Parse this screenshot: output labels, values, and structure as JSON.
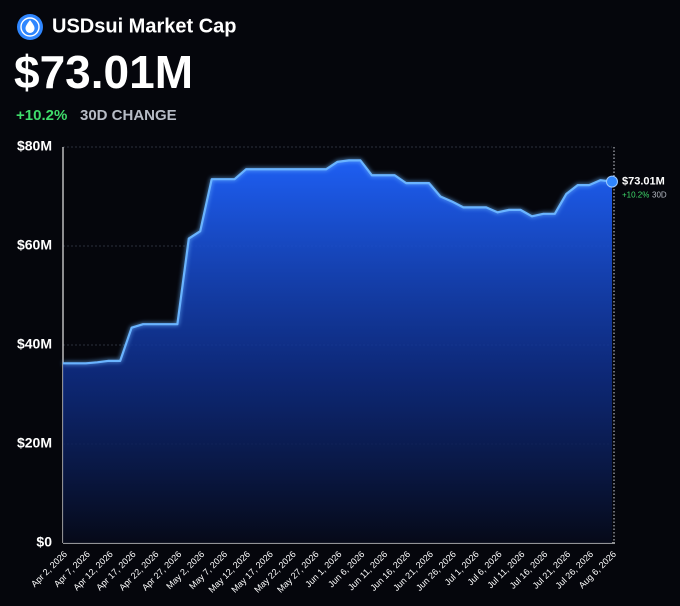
{
  "chart_data": {
    "type": "area",
    "title": "USDsui Market Cap",
    "headline_value": "$73.01M",
    "change": "+10.2%",
    "change_label": "30D CHANGE",
    "end_period": "30D",
    "categories": [
      "Apr 2, 2026",
      null,
      "Apr 7, 2026",
      null,
      "Apr 12, 2026",
      null,
      "Apr 17, 2026",
      null,
      "Apr 22, 2026",
      null,
      "Apr 27, 2026",
      null,
      "May 2, 2026",
      null,
      "May 7, 2026",
      null,
      "May 12, 2026",
      null,
      "May 17, 2026",
      null,
      "May 22, 2026",
      null,
      "May 27, 2026",
      null,
      "Jun 1, 2026",
      null,
      "Jun 6, 2026",
      null,
      "Jun 11, 2026",
      null,
      "Jun 16, 2026",
      null,
      "Jun 21, 2026",
      null,
      "Jun 26, 2026",
      null,
      "Jul 1, 2026",
      null,
      "Jul 6, 2026",
      null,
      "Jul 11, 2026",
      null,
      "Jul 16, 2026",
      null,
      "Jul 21, 2026",
      null,
      "Jul 26, 2026",
      null,
      "Aug 6, 2026"
    ],
    "values": [
      36.3,
      36.3,
      36.3,
      36.5,
      36.8,
      36.8,
      43.5,
      44.2,
      44.2,
      44.2,
      44.2,
      61.5,
      63,
      73.5,
      73.5,
      73.5,
      75.5,
      75.5,
      75.5,
      75.5,
      75.5,
      75.5,
      75.5,
      75.5,
      77,
      77.3,
      77.3,
      74.3,
      74.3,
      74.3,
      72.7,
      72.7,
      72.7,
      70,
      69,
      67.8,
      67.8,
      67.8,
      66.8,
      67.3,
      67.3,
      66,
      66.5,
      66.5,
      70.5,
      72.3,
      72.3,
      73.3,
      73.01
    ],
    "color": "#2f86ff",
    "ylim": [
      0,
      80
    ],
    "yticks": [
      {
        "value": 0,
        "label": "$0"
      },
      {
        "value": 20,
        "label": "$20M"
      },
      {
        "value": 40,
        "label": "$40M"
      },
      {
        "value": 60,
        "label": "$60M"
      },
      {
        "value": 80,
        "label": "$80M"
      }
    ],
    "grid": true
  }
}
